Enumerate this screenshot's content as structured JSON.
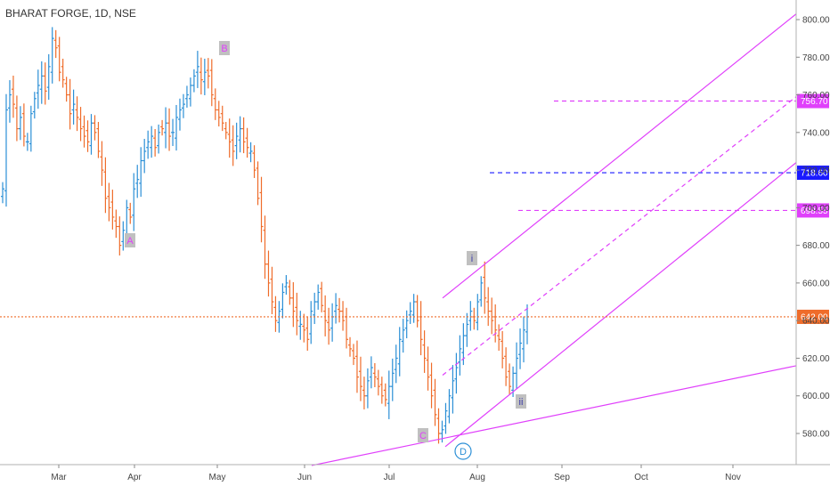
{
  "header": {
    "title": "BHARAT FORGE, 1D, NSE"
  },
  "chart_data": {
    "type": "ohlc",
    "ylim": [
      563,
      808
    ],
    "y_ticks": [
      "800.00",
      "780.00",
      "760.00",
      "740.00",
      "720.00",
      "700.00",
      "680.00",
      "660.00",
      "640.00",
      "620.00",
      "600.00",
      "580.00"
    ],
    "x_ticks": [
      "Mar",
      "Apr",
      "May",
      "Jun",
      "Jul",
      "Aug",
      "Sep",
      "Oct",
      "Nov"
    ],
    "price_labels": [
      {
        "value": 756.7,
        "text": "756.70",
        "color": "#e040fb",
        "style": "dashed"
      },
      {
        "value": 718.6,
        "text": "718.60",
        "color": "#1a1aff",
        "style": "dashed"
      },
      {
        "value": 698.55,
        "text": "698.55",
        "color": "#e040fb",
        "style": "dashed"
      },
      {
        "value": 642.0,
        "text": "642.00",
        "color": "#ef6c2a",
        "style": "dotted"
      }
    ],
    "wave_labels": [
      {
        "text": "A",
        "price": 677,
        "date": "late Mar"
      },
      {
        "text": "B",
        "price": 787,
        "date": "early May"
      },
      {
        "text": "C",
        "price": 576,
        "date": "mid Jul"
      },
      {
        "text": "D",
        "price": 569,
        "date": "mid Jul",
        "circled": true
      },
      {
        "text": "i",
        "price": 672,
        "date": "end Jul"
      },
      {
        "text": "ii",
        "price": 601,
        "date": "mid Aug"
      }
    ],
    "closes": [
      710,
      752,
      760,
      755,
      742,
      748,
      738,
      735,
      750,
      758,
      765,
      770,
      762,
      775,
      790,
      785,
      772,
      768,
      760,
      750,
      755,
      748,
      742,
      738,
      735,
      745,
      740,
      730,
      720,
      705,
      700,
      695,
      690,
      680,
      688,
      700,
      695,
      710,
      715,
      725,
      730,
      735,
      738,
      732,
      740,
      742,
      745,
      738,
      740,
      748,
      752,
      755,
      760,
      765,
      770,
      775,
      768,
      772,
      770,
      760,
      752,
      748,
      745,
      740,
      735,
      730,
      738,
      742,
      735,
      732,
      730,
      720,
      705,
      690,
      670,
      660,
      650,
      640,
      645,
      655,
      660,
      652,
      645,
      640,
      638,
      635,
      630,
      645,
      650,
      655,
      648,
      640,
      635,
      642,
      648,
      645,
      640,
      630,
      625,
      620,
      610,
      605,
      600,
      608,
      615,
      610,
      605,
      600,
      598,
      605,
      612,
      620,
      630,
      635,
      640,
      645,
      650,
      640,
      630,
      620,
      610,
      600,
      590,
      580,
      582,
      592,
      600,
      608,
      615,
      625,
      632,
      638,
      645,
      640,
      650,
      660,
      652,
      645,
      640,
      635,
      630,
      620,
      610,
      605,
      612,
      620,
      628,
      635,
      642
    ]
  }
}
